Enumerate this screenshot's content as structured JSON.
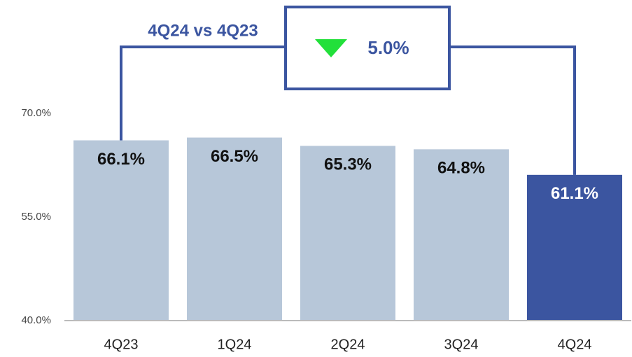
{
  "chart_data": {
    "type": "bar",
    "categories": [
      "4Q23",
      "1Q24",
      "2Q24",
      "3Q24",
      "4Q24"
    ],
    "values": [
      66.1,
      66.5,
      65.3,
      64.8,
      61.1
    ],
    "value_labels": [
      "66.1%",
      "66.5%",
      "65.3%",
      "64.8%",
      "61.1%"
    ],
    "colors": [
      "#b7c7d9",
      "#b7c7d9",
      "#b7c7d9",
      "#b7c7d9",
      "#3b55a0"
    ],
    "ylim": [
      40,
      70
    ],
    "yticks": [
      {
        "value": 40,
        "label": "40.0%"
      },
      {
        "value": 55,
        "label": "55.0%"
      },
      {
        "value": 70,
        "label": "70.0%"
      }
    ],
    "comparison": {
      "label": "4Q24 vs 4Q23",
      "value": 5.0,
      "value_label": "5.0%",
      "direction": "down"
    }
  }
}
